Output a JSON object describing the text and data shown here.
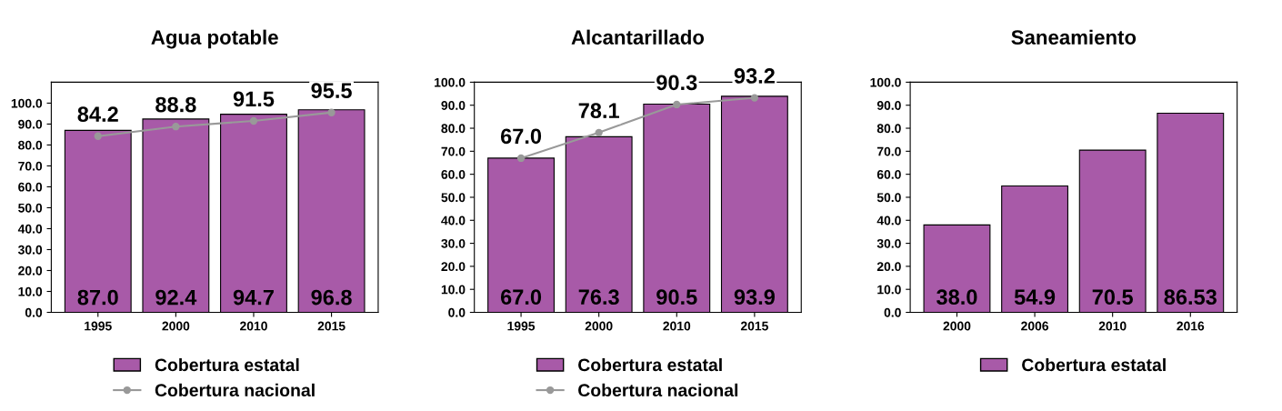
{
  "chart_data": [
    {
      "type": "bar",
      "title": "Agua potable",
      "categories": [
        "1995",
        "2000",
        "2010",
        "2015"
      ],
      "ylim": [
        0,
        110
      ],
      "yticks": [
        {
          "value": 0,
          "label": "0.0"
        },
        {
          "value": 10,
          "label": "10.0"
        },
        {
          "value": 20,
          "label": "20.0"
        },
        {
          "value": 30,
          "label": "30.0"
        },
        {
          "value": 40,
          "label": "40.0"
        },
        {
          "value": 50,
          "label": "50.0"
        },
        {
          "value": 60,
          "label": "60.0"
        },
        {
          "value": 70,
          "label": "70.0"
        },
        {
          "value": 80,
          "label": "80.0"
        },
        {
          "value": 90,
          "label": "90.0"
        },
        {
          "value": 100,
          "label": "100.0"
        }
      ],
      "series": [
        {
          "name": "Cobertura estatal",
          "color": "#a85aa8",
          "values": [
            87.0,
            92.4,
            94.7,
            96.8
          ],
          "value_labels": [
            "87.0",
            "92.4",
            "94.7",
            "96.8"
          ]
        },
        {
          "name": "Cobertura nacional",
          "type": "line",
          "color": "#999999",
          "values": [
            84.2,
            88.8,
            91.5,
            95.5
          ],
          "value_labels": [
            "84.2",
            "88.8",
            "91.5",
            "95.5"
          ]
        }
      ],
      "marker": "circle",
      "legend": "bottom",
      "grid": false
    },
    {
      "type": "bar",
      "title": "Alcantarillado",
      "categories": [
        "1995",
        "2000",
        "2010",
        "2015"
      ],
      "ylim": [
        0,
        100
      ],
      "yticks": [
        {
          "value": 0,
          "label": "0.0"
        },
        {
          "value": 10,
          "label": "10.0"
        },
        {
          "value": 20,
          "label": "20.0"
        },
        {
          "value": 30,
          "label": "30.0"
        },
        {
          "value": 40,
          "label": "40.0"
        },
        {
          "value": 50,
          "label": "50.0"
        },
        {
          "value": 60,
          "label": "60.0"
        },
        {
          "value": 70,
          "label": "70.0"
        },
        {
          "value": 80,
          "label": "80.0"
        },
        {
          "value": 90,
          "label": "90.0"
        },
        {
          "value": 100,
          "label": "100.0"
        }
      ],
      "series": [
        {
          "name": "Cobertura estatal",
          "color": "#a85aa8",
          "values": [
            67.0,
            76.3,
            90.5,
            93.9
          ],
          "value_labels": [
            "67.0",
            "76.3",
            "90.5",
            "93.9"
          ]
        },
        {
          "name": "Cobertura nacional",
          "type": "line",
          "color": "#999999",
          "values": [
            67.0,
            78.1,
            90.3,
            93.2
          ],
          "value_labels": [
            "67.0",
            "78.1",
            "90.3",
            "93.2"
          ]
        }
      ],
      "marker": "circle",
      "legend": "bottom",
      "grid": false
    },
    {
      "type": "bar",
      "title": "Saneamiento",
      "categories": [
        "2000",
        "2006",
        "2010",
        "2016"
      ],
      "ylim": [
        0,
        100
      ],
      "yticks": [
        {
          "value": 0,
          "label": "0.0"
        },
        {
          "value": 10,
          "label": "10.0"
        },
        {
          "value": 20,
          "label": "20.0"
        },
        {
          "value": 30,
          "label": "30.0"
        },
        {
          "value": 40,
          "label": "40.0"
        },
        {
          "value": 50,
          "label": "50.0"
        },
        {
          "value": 60,
          "label": "60.0"
        },
        {
          "value": 70,
          "label": "70.0"
        },
        {
          "value": 80,
          "label": "80.0"
        },
        {
          "value": 90,
          "label": "90.0"
        },
        {
          "value": 100,
          "label": "100.0"
        }
      ],
      "series": [
        {
          "name": "Cobertura estatal",
          "color": "#a85aa8",
          "values": [
            38.0,
            54.9,
            70.5,
            86.53
          ],
          "value_labels": [
            "38.0",
            "54.9",
            "70.5",
            "86.53"
          ]
        }
      ],
      "legend": "bottom",
      "grid": false
    }
  ]
}
